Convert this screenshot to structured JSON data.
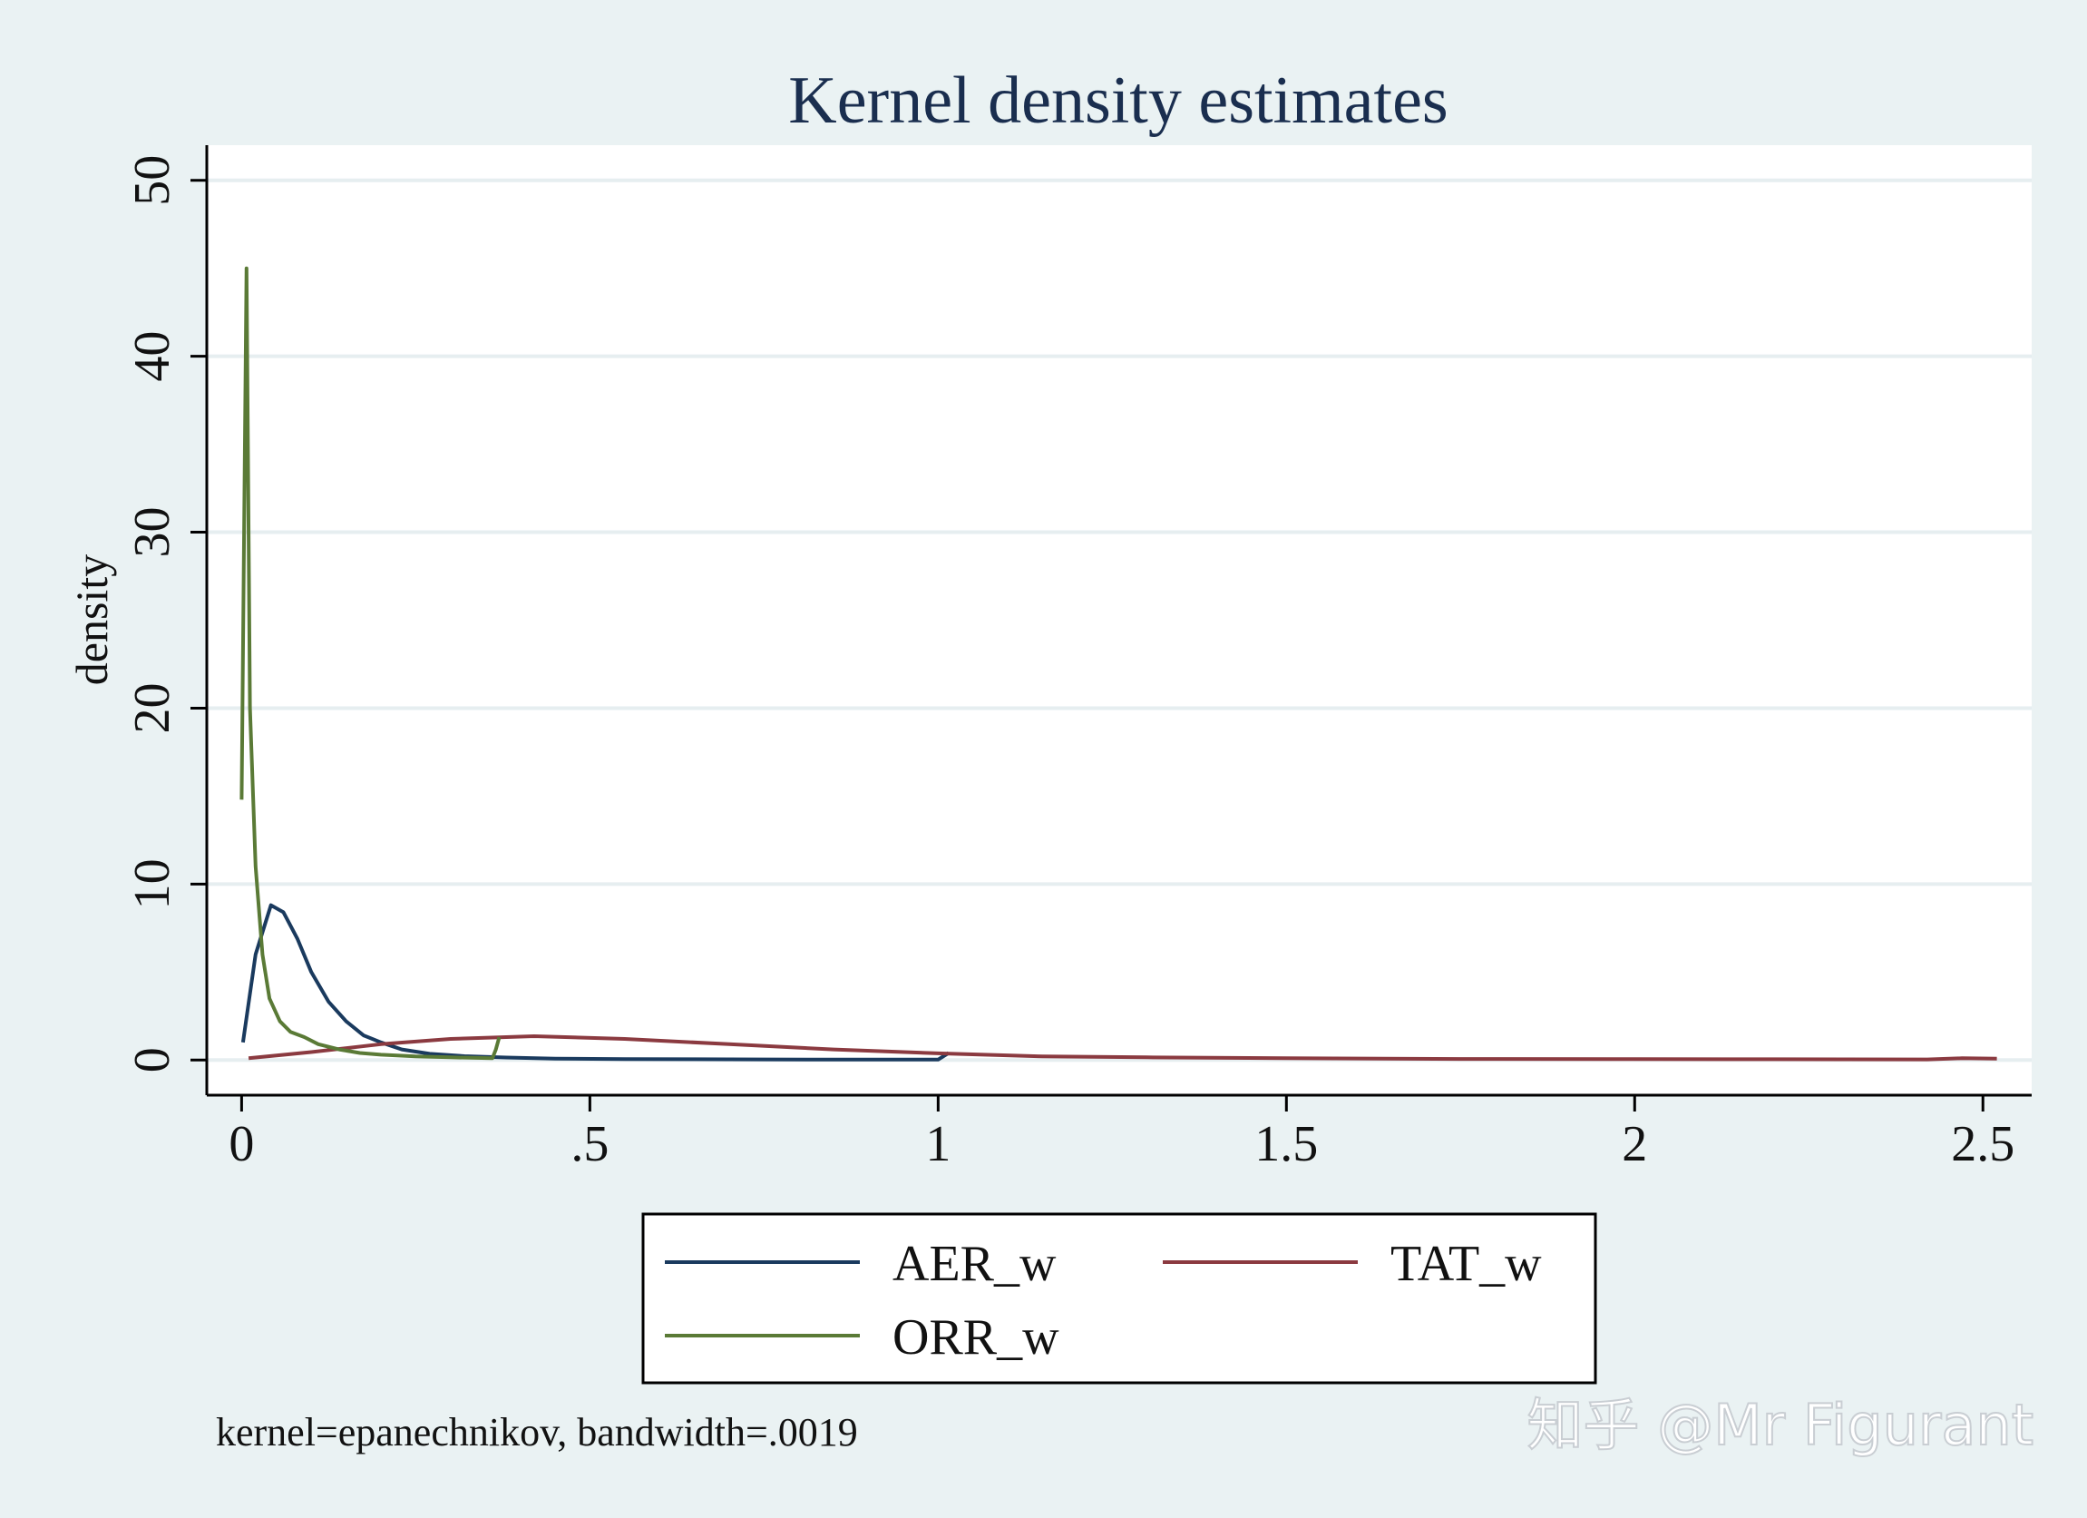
{
  "chart_data": {
    "type": "line",
    "title": "Kernel density estimates",
    "xlabel": "",
    "ylabel": "density",
    "xlim": [
      -0.05,
      2.57
    ],
    "ylim": [
      -2,
      52
    ],
    "x_ticks": [
      0,
      0.5,
      1,
      1.5,
      2,
      2.5
    ],
    "x_tick_labels": [
      "0",
      ".5",
      "1",
      "1.5",
      "2",
      "2.5"
    ],
    "y_ticks": [
      0,
      10,
      20,
      30,
      40,
      50
    ],
    "y_tick_labels": [
      "0",
      "10",
      "20",
      "30",
      "40",
      "50"
    ],
    "grid": true,
    "legend_position": "bottom",
    "note": "kernel=epanechnikov, bandwidth=.0019",
    "series": [
      {
        "name": "AER_w",
        "color": "#1a3a5e",
        "points": [
          [
            0.002,
            1.0
          ],
          [
            0.02,
            6.0
          ],
          [
            0.042,
            8.8
          ],
          [
            0.06,
            8.4
          ],
          [
            0.08,
            6.9
          ],
          [
            0.1,
            5.0
          ],
          [
            0.125,
            3.3
          ],
          [
            0.15,
            2.2
          ],
          [
            0.175,
            1.4
          ],
          [
            0.2,
            1.0
          ],
          [
            0.23,
            0.6
          ],
          [
            0.27,
            0.35
          ],
          [
            0.32,
            0.22
          ],
          [
            0.38,
            0.14
          ],
          [
            0.45,
            0.08
          ],
          [
            0.55,
            0.05
          ],
          [
            0.65,
            0.04
          ],
          [
            0.75,
            0.03
          ],
          [
            0.85,
            0.02
          ],
          [
            0.95,
            0.02
          ],
          [
            1.0,
            0.02
          ],
          [
            1.015,
            0.4
          ]
        ]
      },
      {
        "name": "TAT_w",
        "color": "#8b3a40",
        "points": [
          [
            0.01,
            0.1
          ],
          [
            0.1,
            0.45
          ],
          [
            0.2,
            0.9
          ],
          [
            0.3,
            1.2
          ],
          [
            0.42,
            1.35
          ],
          [
            0.55,
            1.2
          ],
          [
            0.7,
            0.9
          ],
          [
            0.85,
            0.6
          ],
          [
            1.0,
            0.38
          ],
          [
            1.15,
            0.2
          ],
          [
            1.3,
            0.15
          ],
          [
            1.5,
            0.1
          ],
          [
            1.75,
            0.06
          ],
          [
            2.0,
            0.05
          ],
          [
            2.2,
            0.04
          ],
          [
            2.42,
            0.03
          ],
          [
            2.47,
            0.1
          ],
          [
            2.52,
            0.08
          ]
        ]
      },
      {
        "name": "ORR_w",
        "color": "#5a7a36",
        "points": [
          [
            0.0,
            14.8
          ],
          [
            0.007,
            45.0
          ],
          [
            0.012,
            20.0
          ],
          [
            0.02,
            11.0
          ],
          [
            0.03,
            6.0
          ],
          [
            0.04,
            3.5
          ],
          [
            0.055,
            2.2
          ],
          [
            0.07,
            1.6
          ],
          [
            0.09,
            1.3
          ],
          [
            0.11,
            0.9
          ],
          [
            0.14,
            0.6
          ],
          [
            0.17,
            0.4
          ],
          [
            0.2,
            0.3
          ],
          [
            0.25,
            0.2
          ],
          [
            0.3,
            0.15
          ],
          [
            0.36,
            0.1
          ],
          [
            0.365,
            0.6
          ],
          [
            0.37,
            1.3
          ]
        ]
      }
    ]
  },
  "watermark": "知乎 @Mr Figurant"
}
